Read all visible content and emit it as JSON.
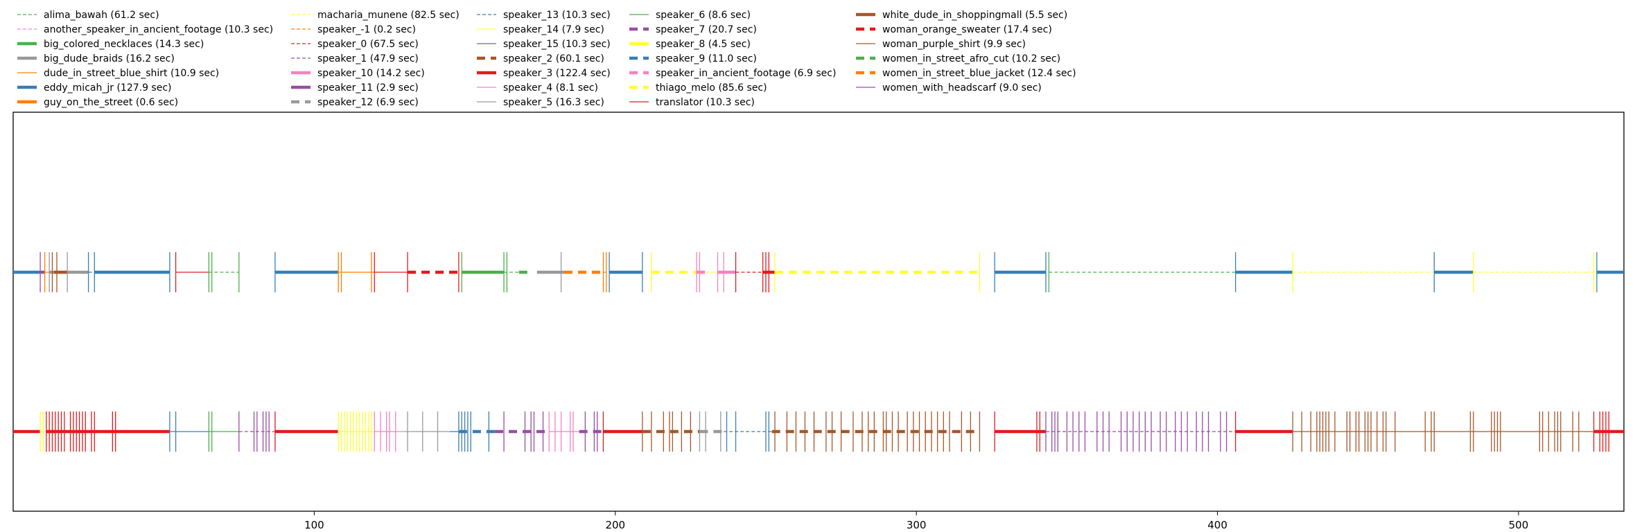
{
  "chart_data": {
    "type": "timeline",
    "xlim": [
      0,
      535
    ],
    "x_ticks": [
      100,
      200,
      300,
      400,
      500
    ],
    "y_rows": 2,
    "grid": false,
    "legend_position": "top",
    "legend": [
      {
        "label": "alima_bawah (61.2 sec)",
        "color": "#4daf4a",
        "style": "dashed-thin"
      },
      {
        "label": "another_speaker_in_ancient_footage (10.3 sec)",
        "color": "#f781bf",
        "style": "dashed-thin"
      },
      {
        "label": "big_colored_necklaces (14.3 sec)",
        "color": "#4daf4a",
        "style": "solid-thick"
      },
      {
        "label": "big_dude_braids (16.2 sec)",
        "color": "#999999",
        "style": "solid-thick"
      },
      {
        "label": "dude_in_street_blue_shirt (10.9 sec)",
        "color": "#ff7f00",
        "style": "solid-thin"
      },
      {
        "label": "eddy_micah_jr (127.9 sec)",
        "color": "#377eb8",
        "style": "solid-thick"
      },
      {
        "label": "guy_on_the_street (0.6 sec)",
        "color": "#ff7f00",
        "style": "solid-thick"
      },
      {
        "label": "macharia_munene (82.5 sec)",
        "color": "#ffff33",
        "style": "dashed-thin"
      },
      {
        "label": "speaker_-1 (0.2 sec)",
        "color": "#ff7f00",
        "style": "dashed-thin"
      },
      {
        "label": "speaker_0 (67.5 sec)",
        "color": "#e41a1c",
        "style": "dashed-thin"
      },
      {
        "label": "speaker_1 (47.9 sec)",
        "color": "#984ea3",
        "style": "dashed-thin"
      },
      {
        "label": "speaker_10 (14.2 sec)",
        "color": "#f781bf",
        "style": "solid-thick"
      },
      {
        "label": "speaker_11 (2.9 sec)",
        "color": "#984ea3",
        "style": "solid-thick"
      },
      {
        "label": "speaker_12 (6.9 sec)",
        "color": "#999999",
        "style": "dashed-thick"
      },
      {
        "label": "speaker_13 (10.3 sec)",
        "color": "#377eb8",
        "style": "dashed-thin"
      },
      {
        "label": "speaker_14 (7.9 sec)",
        "color": "#ffff33",
        "style": "solid-thin"
      },
      {
        "label": "speaker_15 (10.3 sec)",
        "color": "#377eb8",
        "style": "solid-thin"
      },
      {
        "label": "speaker_2 (60.1 sec)",
        "color": "#a65628",
        "style": "dashed-thick"
      },
      {
        "label": "speaker_3 (122.4 sec)",
        "color": "#e41a1c",
        "style": "solid-thick"
      },
      {
        "label": "speaker_4 (8.1 sec)",
        "color": "#f781bf",
        "style": "solid-thin"
      },
      {
        "label": "speaker_5 (16.3 sec)",
        "color": "#999999",
        "style": "solid-thin"
      },
      {
        "label": "speaker_6 (8.6 sec)",
        "color": "#4daf4a",
        "style": "solid-thin"
      },
      {
        "label": "speaker_7 (20.7 sec)",
        "color": "#984ea3",
        "style": "dashed-thick"
      },
      {
        "label": "speaker_8 (4.5 sec)",
        "color": "#ffff33",
        "style": "solid-thick"
      },
      {
        "label": "speaker_9 (11.0 sec)",
        "color": "#377eb8",
        "style": "dashed-thick"
      },
      {
        "label": "speaker_in_ancient_footage (6.9 sec)",
        "color": "#f781bf",
        "style": "dashed-thick"
      },
      {
        "label": "thiago_melo (85.6 sec)",
        "color": "#ffff33",
        "style": "dashed-thick"
      },
      {
        "label": "translator (10.3 sec)",
        "color": "#e41a1c",
        "style": "solid-thin"
      },
      {
        "label": "white_dude_in_shoppingmall (5.5 sec)",
        "color": "#a65628",
        "style": "solid-thick"
      },
      {
        "label": "woman_orange_sweater (17.4 sec)",
        "color": "#e41a1c",
        "style": "dashed-thick"
      },
      {
        "label": "woman_purple_shirt (9.9 sec)",
        "color": "#a65628",
        "style": "solid-thin"
      },
      {
        "label": "women_in_street_afro_cut (10.2 sec)",
        "color": "#4daf4a",
        "style": "dashed-thick"
      },
      {
        "label": "women_in_street_blue_jacket (12.4 sec)",
        "color": "#ff7f00",
        "style": "dashed-thick"
      },
      {
        "label": "women_with_headscarf (9.0 sec)",
        "color": "#984ea3",
        "style": "solid-thin"
      }
    ],
    "series": [
      {
        "name": "top",
        "segments": [
          {
            "start": 0,
            "end": 9,
            "speaker": 5
          },
          {
            "start": 9,
            "end": 10.5,
            "speaker": 12
          },
          {
            "start": 10.5,
            "end": 12,
            "speaker": 4
          },
          {
            "start": 12,
            "end": 13.5,
            "speaker": 3
          },
          {
            "start": 13.5,
            "end": 18,
            "speaker": 28
          },
          {
            "start": 18,
            "end": 25,
            "speaker": 3
          },
          {
            "start": 25,
            "end": 27,
            "speaker": 14
          },
          {
            "start": 27,
            "end": 52,
            "speaker": 5
          },
          {
            "start": 54,
            "end": 65,
            "speaker": 27
          },
          {
            "start": 65,
            "end": 75,
            "speaker": 0
          },
          {
            "start": 87,
            "end": 108,
            "speaker": 5
          },
          {
            "start": 108,
            "end": 120,
            "speaker": 4
          },
          {
            "start": 120,
            "end": 131,
            "speaker": 27
          },
          {
            "start": 131,
            "end": 149,
            "speaker": 29
          },
          {
            "start": 149,
            "end": 163,
            "speaker": 2
          },
          {
            "start": 163,
            "end": 168,
            "speaker": 0
          },
          {
            "start": 168,
            "end": 172,
            "speaker": 31
          },
          {
            "start": 174,
            "end": 183,
            "speaker": 3
          },
          {
            "start": 183,
            "end": 196,
            "speaker": 32
          },
          {
            "start": 196,
            "end": 198,
            "speaker": 8
          },
          {
            "start": 198,
            "end": 209,
            "speaker": 5
          },
          {
            "start": 212,
            "end": 227,
            "speaker": 26
          },
          {
            "start": 227,
            "end": 230,
            "speaker": 25
          },
          {
            "start": 230,
            "end": 234,
            "speaker": 7
          },
          {
            "start": 234,
            "end": 240,
            "speaker": 11
          },
          {
            "start": 240,
            "end": 249,
            "speaker": 9
          },
          {
            "start": 249,
            "end": 253,
            "speaker": 18
          },
          {
            "start": 253,
            "end": 321,
            "speaker": 26
          },
          {
            "start": 326,
            "end": 343,
            "speaker": 5
          },
          {
            "start": 344,
            "end": 406,
            "speaker": 0
          },
          {
            "start": 406,
            "end": 425,
            "speaker": 5
          },
          {
            "start": 425,
            "end": 472,
            "speaker": 7
          },
          {
            "start": 472,
            "end": 485,
            "speaker": 5
          },
          {
            "start": 485,
            "end": 525,
            "speaker": 7
          },
          {
            "start": 526,
            "end": 535,
            "speaker": 5
          }
        ],
        "tick_marks": [
          9,
          10.5,
          12,
          13,
          14.5,
          18,
          25,
          27,
          52,
          54,
          65,
          66,
          75,
          87,
          108,
          109,
          119,
          120,
          131,
          148,
          149,
          163,
          164,
          182,
          196,
          197,
          198,
          209,
          212,
          227,
          228,
          234,
          236,
          240,
          249,
          250,
          251,
          253,
          321,
          326,
          343,
          344,
          406,
          425,
          472,
          485,
          525,
          526
        ]
      },
      {
        "name": "bottom",
        "segments": [
          {
            "start": 0,
            "end": 9,
            "speaker": 18
          },
          {
            "start": 9,
            "end": 11,
            "speaker": 15
          },
          {
            "start": 11,
            "end": 27,
            "speaker": 18
          },
          {
            "start": 27,
            "end": 34,
            "speaker": 18
          },
          {
            "start": 34,
            "end": 52,
            "speaker": 18
          },
          {
            "start": 52,
            "end": 65,
            "speaker": 16
          },
          {
            "start": 65,
            "end": 75,
            "speaker": 21
          },
          {
            "start": 75,
            "end": 87,
            "speaker": 10
          },
          {
            "start": 87,
            "end": 108,
            "speaker": 18
          },
          {
            "start": 108,
            "end": 120,
            "speaker": 15
          },
          {
            "start": 120,
            "end": 130,
            "speaker": 19
          },
          {
            "start": 130,
            "end": 145,
            "speaker": 20
          },
          {
            "start": 145,
            "end": 148,
            "speaker": 16
          },
          {
            "start": 148,
            "end": 160,
            "speaker": 24
          },
          {
            "start": 160,
            "end": 178,
            "speaker": 22
          },
          {
            "start": 178,
            "end": 188,
            "speaker": 19
          },
          {
            "start": 188,
            "end": 196,
            "speaker": 22
          },
          {
            "start": 196,
            "end": 209,
            "speaker": 18
          },
          {
            "start": 209,
            "end": 228,
            "speaker": 17
          },
          {
            "start": 228,
            "end": 236,
            "speaker": 13
          },
          {
            "start": 236,
            "end": 252,
            "speaker": 14
          },
          {
            "start": 252,
            "end": 321,
            "speaker": 17
          },
          {
            "start": 326,
            "end": 343,
            "speaker": 18
          },
          {
            "start": 343,
            "end": 406,
            "speaker": 10
          },
          {
            "start": 406,
            "end": 425,
            "speaker": 18
          },
          {
            "start": 425,
            "end": 485,
            "speaker": 30
          },
          {
            "start": 485,
            "end": 525,
            "speaker": 30
          },
          {
            "start": 525,
            "end": 535,
            "speaker": 18
          }
        ],
        "tick_marks": [
          9,
          10,
          11,
          12,
          13,
          14,
          15,
          16,
          17,
          19,
          20,
          21,
          22,
          23,
          24,
          26,
          27,
          33,
          34,
          52,
          54,
          65,
          66,
          75,
          80,
          81,
          83,
          84,
          85,
          87,
          108,
          109,
          110,
          111,
          112,
          113,
          114,
          115,
          116,
          117,
          118,
          119,
          120,
          122,
          124,
          125,
          127,
          131,
          136,
          141,
          148,
          149,
          150,
          151,
          152,
          158,
          163,
          170,
          172,
          173,
          176,
          178,
          180,
          182,
          185,
          186,
          190,
          193,
          194,
          196,
          209,
          212,
          216,
          218,
          219,
          222,
          225,
          228,
          230,
          235,
          237,
          240,
          250,
          251,
          253,
          257,
          260,
          263,
          266,
          270,
          272,
          275,
          279,
          282,
          284,
          286,
          289,
          290,
          292,
          294,
          297,
          299,
          301,
          303,
          305,
          307,
          309,
          311,
          315,
          318,
          321,
          326,
          340,
          341,
          343,
          345,
          346,
          347,
          350,
          352,
          354,
          356,
          360,
          362,
          364,
          368,
          370,
          372,
          374,
          376,
          378,
          381,
          383,
          386,
          388,
          390,
          393,
          395,
          397,
          401,
          403,
          406,
          425,
          428,
          431,
          433,
          434,
          435,
          436,
          437,
          439,
          443,
          444,
          446,
          447,
          449,
          450,
          451,
          453,
          455,
          456,
          459,
          469,
          471,
          472,
          484,
          485,
          491,
          492,
          493,
          494,
          507,
          508,
          510,
          512,
          513,
          514,
          518,
          520,
          525,
          527,
          528,
          529,
          530
        ]
      }
    ]
  }
}
